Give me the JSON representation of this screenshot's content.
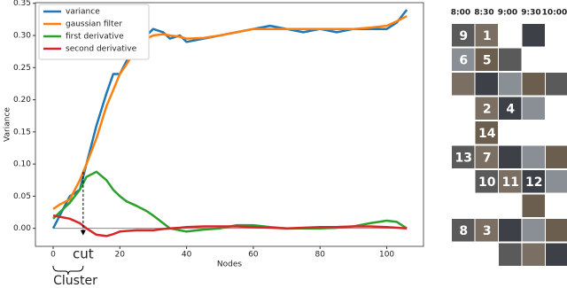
{
  "chart_data": {
    "type": "line",
    "x_label": "Nodes",
    "y_label": "Variance",
    "x": [
      0,
      2,
      5,
      8,
      10,
      13,
      16,
      18,
      20,
      22,
      25,
      28,
      30,
      33,
      35,
      38,
      40,
      45,
      50,
      55,
      60,
      65,
      70,
      75,
      80,
      85,
      90,
      95,
      100,
      103,
      106
    ],
    "series": [
      {
        "name": "variance",
        "color": "#1f77b4",
        "values": [
          0,
          0.02,
          0.05,
          0.06,
          0.1,
          0.16,
          0.21,
          0.24,
          0.24,
          0.26,
          0.28,
          0.3,
          0.31,
          0.305,
          0.295,
          0.3,
          0.29,
          0.295,
          0.3,
          0.305,
          0.31,
          0.315,
          0.31,
          0.305,
          0.31,
          0.305,
          0.31,
          0.31,
          0.31,
          0.32,
          0.34
        ]
      },
      {
        "name": "gaussian filter",
        "color": "#ff7f0e",
        "values": [
          0.03,
          0.037,
          0.045,
          0.075,
          0.1,
          0.14,
          0.19,
          0.215,
          0.24,
          0.255,
          0.28,
          0.295,
          0.3,
          0.302,
          0.3,
          0.298,
          0.295,
          0.296,
          0.3,
          0.305,
          0.31,
          0.31,
          0.31,
          0.31,
          0.31,
          0.31,
          0.31,
          0.312,
          0.315,
          0.322,
          0.33
        ]
      },
      {
        "name": "first derivative",
        "color": "#2ca02c",
        "values": [
          0.015,
          0.025,
          0.04,
          0.06,
          0.08,
          0.088,
          0.075,
          0.06,
          0.05,
          0.042,
          0.035,
          0.027,
          0.02,
          0.008,
          0.0,
          -0.003,
          -0.005,
          -0.002,
          0.0,
          0.005,
          0.005,
          0.002,
          0.0,
          0.0,
          0.0,
          0.001,
          0.003,
          0.008,
          0.012,
          0.01,
          0.0
        ]
      },
      {
        "name": "second derivative",
        "color": "#d62728",
        "values": [
          0.02,
          0.018,
          0.015,
          0.008,
          0.0,
          -0.01,
          -0.012,
          -0.009,
          -0.005,
          -0.004,
          -0.003,
          -0.003,
          -0.003,
          -0.001,
          0.0,
          0.001,
          0.002,
          0.003,
          0.003,
          0.003,
          0.002,
          0.001,
          0.0,
          0.001,
          0.002,
          0.002,
          0.003,
          0.003,
          0.002,
          0.001,
          0.0
        ]
      }
    ],
    "xlim": [
      -5.3,
      111
    ],
    "ylim": [
      -0.028,
      0.351
    ],
    "xticks": [
      0,
      20,
      40,
      60,
      80,
      100
    ],
    "yticks": [
      {
        "value": 0,
        "label": "0.00"
      },
      {
        "value": 0.05,
        "label": "0.05"
      },
      {
        "value": 0.1,
        "label": "0.10"
      },
      {
        "value": 0.15,
        "label": "0.15"
      },
      {
        "value": 0.2,
        "label": "0.20"
      },
      {
        "value": 0.25,
        "label": "0.25"
      },
      {
        "value": 0.3,
        "label": "0.30"
      },
      {
        "value": 0.35,
        "label": "0.35"
      }
    ],
    "legend": "upper left",
    "annotations": [
      {
        "text": "cut",
        "x": 9
      },
      {
        "text": "Cluster"
      }
    ]
  },
  "timeline": {
    "times": [
      "8:00",
      "8:30",
      "9:00",
      "9:30",
      "10:00"
    ],
    "labels": [
      "9",
      "1",
      "6",
      "5",
      "2",
      "4",
      "14",
      "13",
      "7",
      "10",
      "11",
      "12",
      "8",
      "3"
    ]
  }
}
